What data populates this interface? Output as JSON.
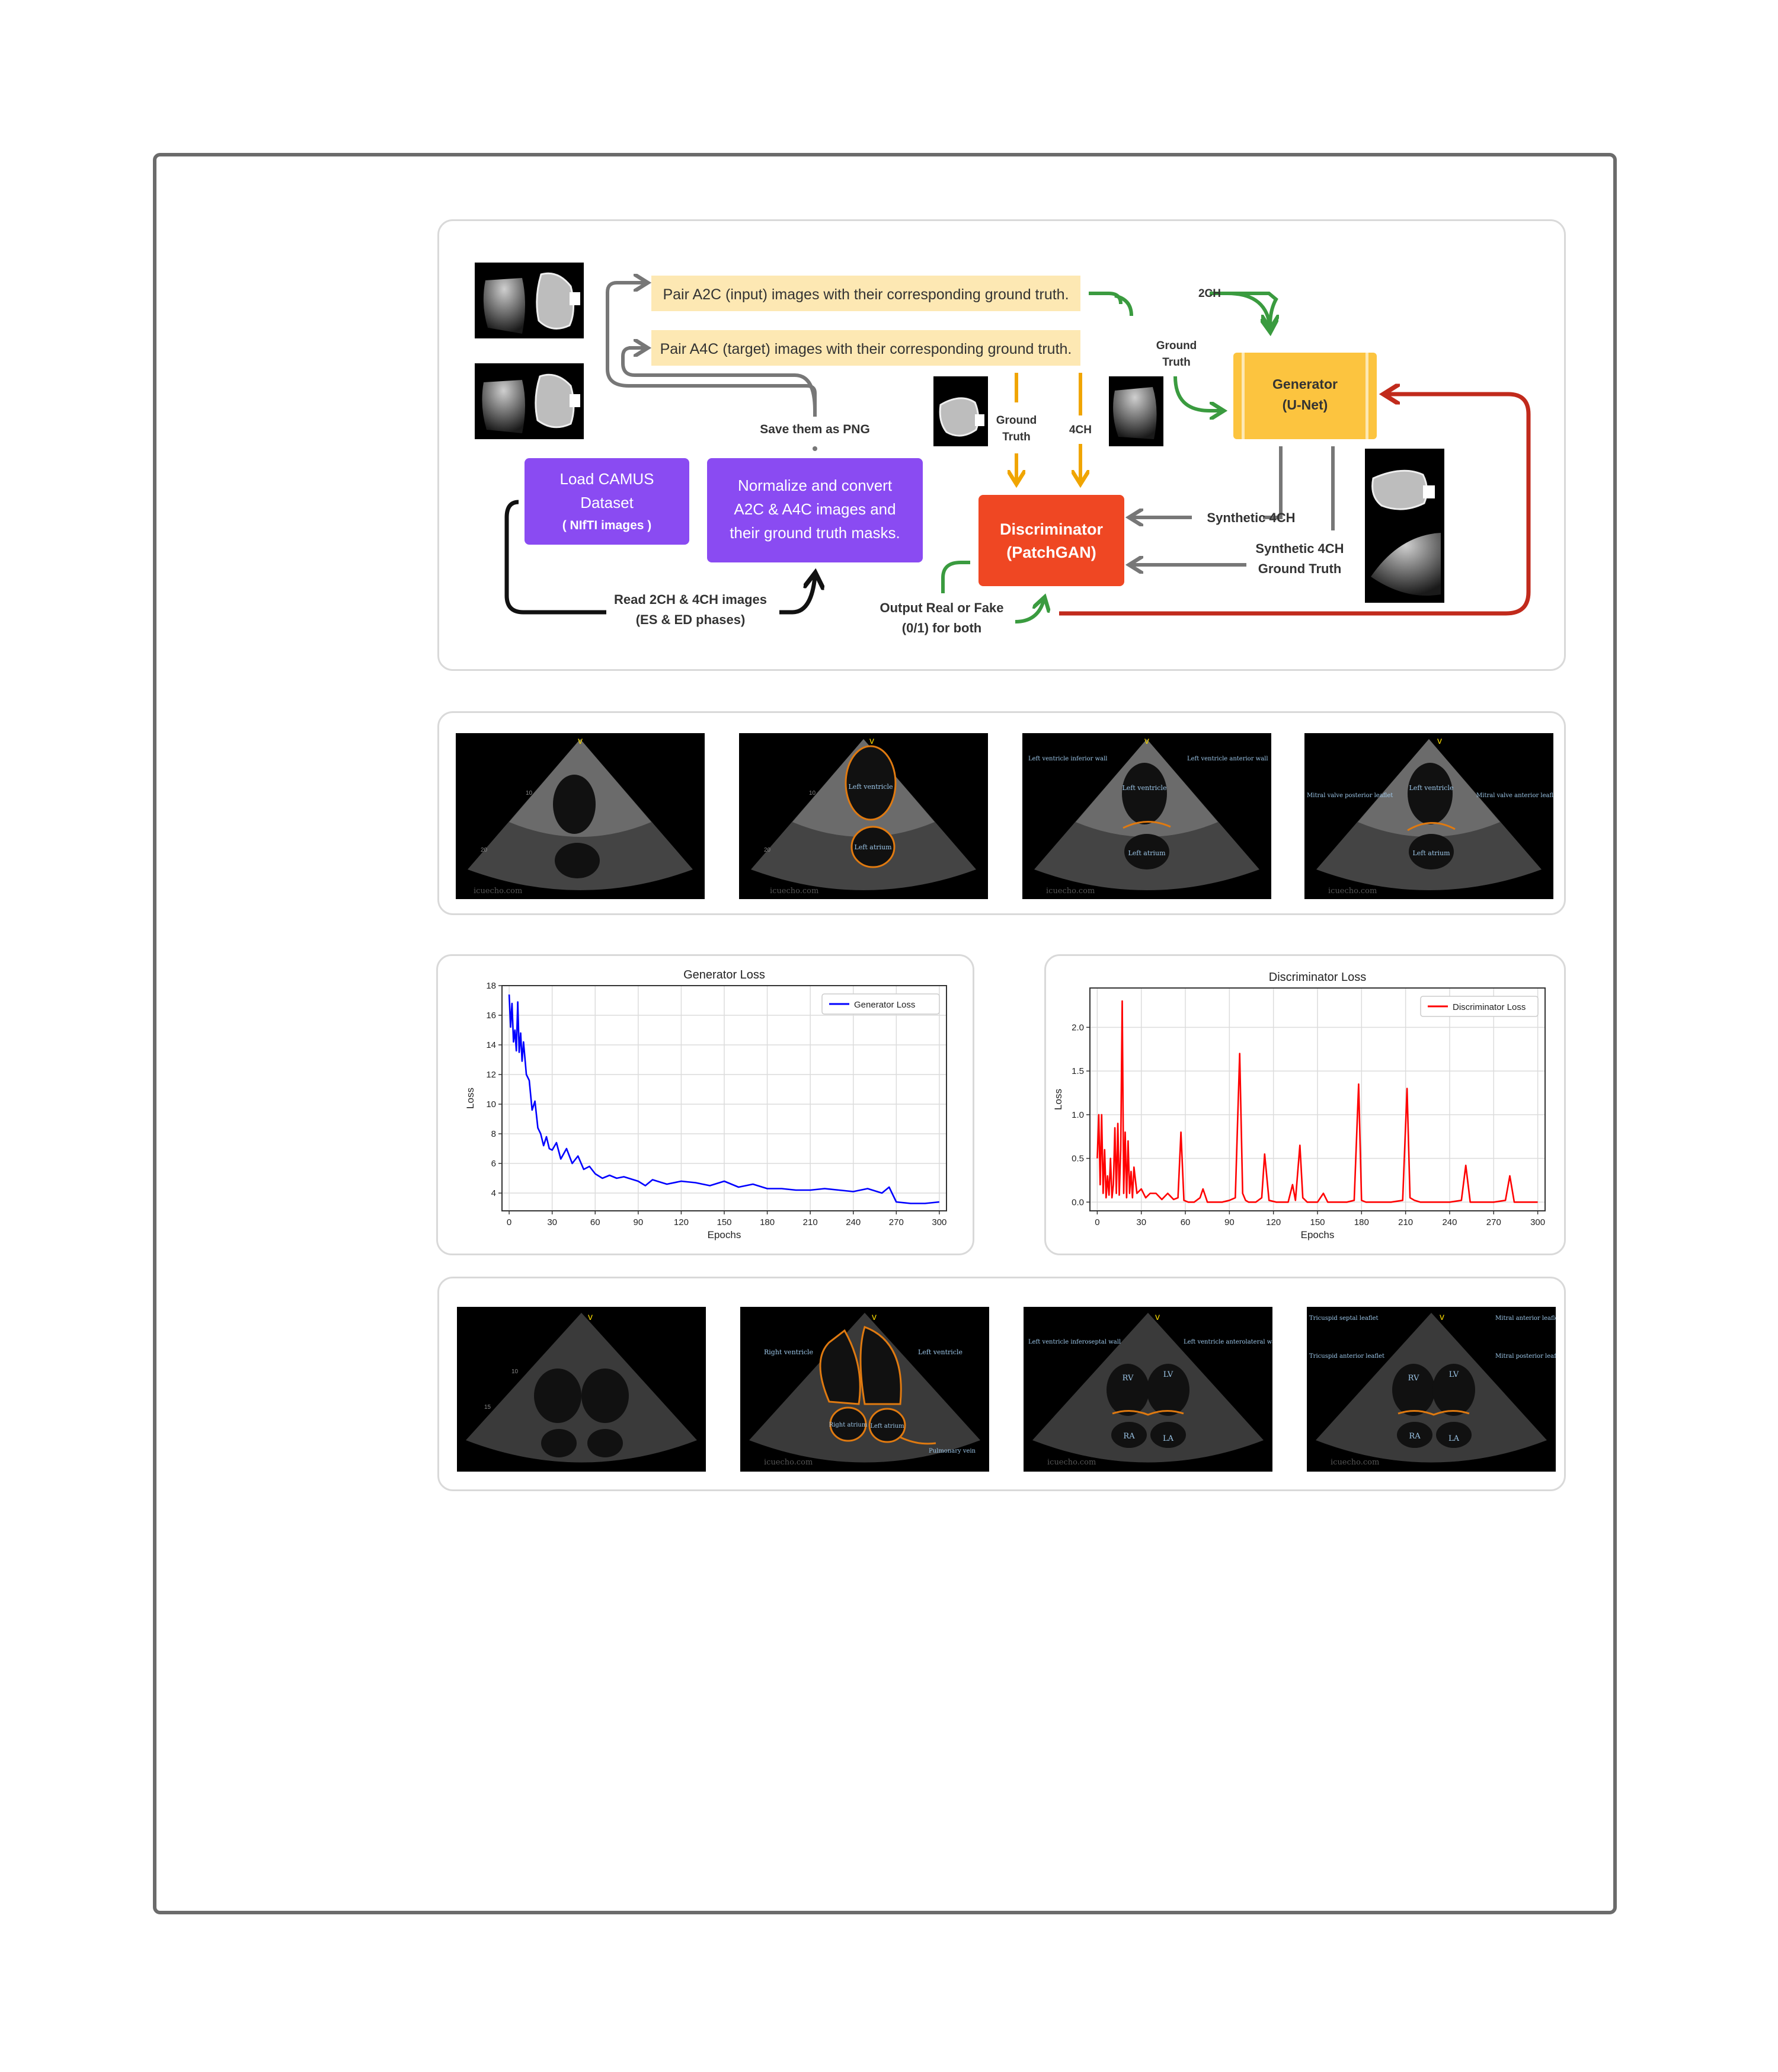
{
  "pipeline": {
    "pair_a2c": "Pair A2C (input) images with their corresponding ground truth.",
    "pair_a4c": "Pair A4C (target) images with their corresponding ground truth.",
    "save_png": "Save them as PNG",
    "load_camus_1": "Load CAMUS",
    "load_camus_2": "Dataset",
    "load_camus_3": "( NIfTI images )",
    "normalize_1": "Normalize and convert",
    "normalize_2": "A2C & A4C images and",
    "normalize_3": "their ground truth masks.",
    "read_1": "Read 2CH & 4CH images",
    "read_2": "(ES & ED phases)",
    "generator_1": "Generator",
    "generator_2": "(U-Net)",
    "discriminator_1": "Discriminator",
    "discriminator_2": "(PatchGAN)",
    "lbl_2ch": "2CH",
    "lbl_gt_a1": "Ground",
    "lbl_gt_a2": "Truth",
    "lbl_gt_b1": "Ground",
    "lbl_gt_b2": "Truth",
    "lbl_4ch": "4CH",
    "lbl_syn4ch": "Synthetic 4CH",
    "lbl_syn4ch_gt1": "Synthetic 4CH",
    "lbl_syn4ch_gt2": "Ground Truth",
    "output_1": "Output Real or Fake",
    "output_2": "(0/1) for both",
    "colors": {
      "purple": "#8a4bf2",
      "yellow_box": "#fde8b3",
      "generator": "#fcc43f",
      "discriminator": "#ef4723",
      "green": "#3a9b3f",
      "orange": "#f0a500",
      "red": "#c12a1c",
      "gray": "#777777"
    }
  },
  "echo_row_1": {
    "watermark": "icuecho.com",
    "labels": {
      "left_ventricle": "Left ventricle",
      "left_atrium": "Left atrium",
      "lv_inferior_wall": "Left ventricle inferior wall",
      "lv_anterior_wall": "Left ventricle anterior wall",
      "mv_posterior_leaflet": "Mitral valve posterior leaflet",
      "mv_anterior_leaflet": "Mitral valve anterior leaflet"
    },
    "depth_10": "10",
    "depth_20": "20"
  },
  "echo_row_2": {
    "watermark": "icuecho.com",
    "labels": {
      "right_ventricle": "Right ventricle",
      "left_ventricle": "Left ventricle",
      "right_atrium": "Right atrium",
      "left_atrium": "Left atrium",
      "pulmonary_vein": "Pulmonary vein",
      "lv_inferoseptal_wall": "Left ventricle inferoseptal wall",
      "lv_anterolateral_wall": "Left ventricle anterolateral wall",
      "rv": "RV",
      "lv": "LV",
      "ra": "RA",
      "la": "LA",
      "tricuspid_septal": "Tricuspid septal leaflet",
      "tricuspid_anterior": "Tricuspid anterior leaflet",
      "mitral_anterior": "Mitral anterior leaflet",
      "mitral_posterior": "Mitral posterior leaflet"
    },
    "depth_10": "10",
    "depth_15": "15"
  },
  "chart_data": [
    {
      "type": "line",
      "title": "Generator Loss",
      "xlabel": "Epochs",
      "ylabel": "Loss",
      "xlim": [
        -5,
        305
      ],
      "ylim": [
        2.8,
        18
      ],
      "xticks": [
        0,
        30,
        60,
        90,
        120,
        150,
        180,
        210,
        240,
        270,
        300
      ],
      "yticks": [
        4,
        6,
        8,
        10,
        12,
        14,
        16,
        18
      ],
      "grid": true,
      "legend": "top-right",
      "series": [
        {
          "name": "Generator Loss",
          "color": "#0000ff",
          "x": [
            0,
            1,
            2,
            3,
            4,
            5,
            6,
            7,
            8,
            9,
            10,
            12,
            14,
            16,
            18,
            20,
            22,
            24,
            26,
            28,
            30,
            33,
            36,
            40,
            44,
            48,
            52,
            56,
            60,
            65,
            70,
            75,
            80,
            90,
            95,
            100,
            110,
            120,
            130,
            140,
            150,
            160,
            170,
            180,
            190,
            200,
            210,
            220,
            230,
            240,
            250,
            260,
            265,
            270,
            280,
            290,
            300
          ],
          "y": [
            17.4,
            15.2,
            16.8,
            14.2,
            15.0,
            13.6,
            16.9,
            13.5,
            14.8,
            12.9,
            14.2,
            12.0,
            11.6,
            9.6,
            10.2,
            8.4,
            8.0,
            7.2,
            7.8,
            7.0,
            6.9,
            7.4,
            6.3,
            7.0,
            6.0,
            6.5,
            5.6,
            5.8,
            5.3,
            5.0,
            5.2,
            5.0,
            5.1,
            4.8,
            4.5,
            4.9,
            4.6,
            4.8,
            4.7,
            4.5,
            4.8,
            4.4,
            4.6,
            4.3,
            4.3,
            4.2,
            4.2,
            4.3,
            4.2,
            4.1,
            4.3,
            4.0,
            4.4,
            3.4,
            3.3,
            3.3,
            3.4
          ]
        }
      ]
    },
    {
      "type": "line",
      "title": "Discriminator Loss",
      "xlabel": "Epochs",
      "ylabel": "Loss",
      "xlim": [
        -5,
        305
      ],
      "ylim": [
        -0.1,
        2.45
      ],
      "xticks": [
        0,
        30,
        60,
        90,
        120,
        150,
        180,
        210,
        240,
        270,
        300
      ],
      "yticks": [
        0.0,
        0.5,
        1.0,
        1.5,
        2.0
      ],
      "grid": true,
      "legend": "top-right",
      "series": [
        {
          "name": "Discriminator Loss",
          "color": "#ff0000",
          "x": [
            0,
            1,
            2,
            3,
            4,
            5,
            6,
            7,
            8,
            9,
            10,
            11,
            12,
            13,
            14,
            15,
            16,
            17,
            18,
            19,
            20,
            21,
            22,
            23,
            24,
            25,
            27,
            30,
            33,
            36,
            40,
            44,
            48,
            52,
            55,
            57,
            59,
            62,
            66,
            70,
            72,
            75,
            80,
            85,
            90,
            94,
            97,
            99,
            101,
            103,
            108,
            112,
            114,
            117,
            122,
            130,
            133,
            135,
            138,
            140,
            143,
            146,
            150,
            154,
            157,
            160,
            170,
            175,
            178,
            180,
            183,
            190,
            200,
            208,
            211,
            213,
            216,
            220,
            230,
            240,
            248,
            251,
            254,
            260,
            270,
            278,
            281,
            284,
            290,
            300
          ],
          "y": [
            0.5,
            1.0,
            0.2,
            1.0,
            0.1,
            0.6,
            0.05,
            0.3,
            0.08,
            0.5,
            0.05,
            0.2,
            0.85,
            0.1,
            0.9,
            0.08,
            0.6,
            2.3,
            0.1,
            0.8,
            0.05,
            0.7,
            0.1,
            0.35,
            0.05,
            0.4,
            0.1,
            0.15,
            0.05,
            0.1,
            0.1,
            0.03,
            0.1,
            0.03,
            0.05,
            0.8,
            0.02,
            0.0,
            0.0,
            0.05,
            0.15,
            0.0,
            0.0,
            0.0,
            0.02,
            0.05,
            1.7,
            0.1,
            0.02,
            0.0,
            0.0,
            0.05,
            0.55,
            0.02,
            0.0,
            0.0,
            0.2,
            0.02,
            0.65,
            0.05,
            0.0,
            0.0,
            0.0,
            0.1,
            0.0,
            0.0,
            0.0,
            0.02,
            1.35,
            0.02,
            0.0,
            0.0,
            0.0,
            0.02,
            1.3,
            0.05,
            0.02,
            0.0,
            0.0,
            0.0,
            0.02,
            0.42,
            0.0,
            0.0,
            0.0,
            0.02,
            0.3,
            0.0,
            0.0,
            0.0
          ]
        }
      ]
    }
  ]
}
